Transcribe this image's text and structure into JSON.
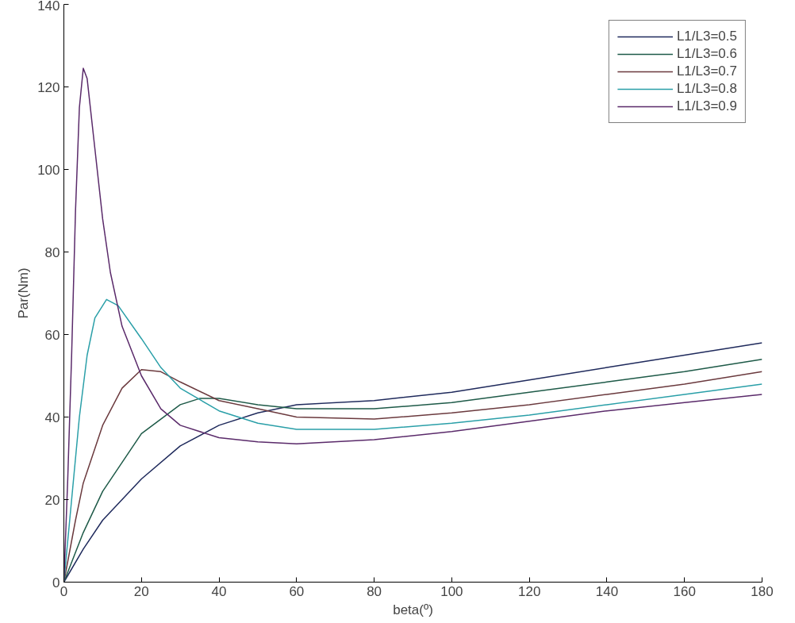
{
  "chart_data": {
    "type": "line",
    "xlabel": "beta(º)",
    "ylabel": "Par(Nm)",
    "xlim": [
      0,
      180
    ],
    "ylim": [
      0,
      140
    ],
    "xticks": [
      0,
      20,
      40,
      60,
      80,
      100,
      120,
      140,
      160,
      180
    ],
    "yticks": [
      0,
      20,
      40,
      60,
      80,
      100,
      120,
      140
    ],
    "grid": false,
    "legend": "top right",
    "marker": "none",
    "line_style": "solid",
    "series": [
      {
        "name": "L1/L3=0.5",
        "color": "#1f2a5c",
        "x": [
          0,
          5,
          10,
          20,
          30,
          40,
          50,
          60,
          80,
          100,
          120,
          140,
          160,
          180
        ],
        "values": [
          0,
          8,
          15,
          25,
          33,
          38,
          41,
          43,
          44,
          46,
          49,
          52,
          55,
          58
        ]
      },
      {
        "name": "L1/L3=0.6",
        "color": "#1e5a48",
        "x": [
          0,
          5,
          10,
          20,
          30,
          35,
          40,
          50,
          60,
          80,
          100,
          120,
          140,
          160,
          180
        ],
        "values": [
          0,
          12,
          22,
          36,
          43,
          44.5,
          44.5,
          43,
          42,
          42,
          43.5,
          46,
          48.5,
          51,
          54
        ]
      },
      {
        "name": "L1/L3=0.7",
        "color": "#6b3a3e",
        "x": [
          0,
          3,
          5,
          10,
          15,
          20,
          25,
          30,
          40,
          50,
          60,
          80,
          100,
          120,
          140,
          160,
          180
        ],
        "values": [
          0,
          15,
          24,
          38,
          47,
          51.5,
          51,
          48.5,
          44,
          42,
          40,
          39.5,
          41,
          43,
          45.5,
          48,
          51
        ]
      },
      {
        "name": "L1/L3=0.8",
        "color": "#2a9fa8",
        "x": [
          0,
          2,
          4,
          6,
          8,
          11,
          14,
          20,
          25,
          30,
          40,
          50,
          60,
          80,
          100,
          120,
          140,
          160,
          180
        ],
        "values": [
          0,
          20,
          40,
          55,
          64,
          68.5,
          67,
          59,
          52,
          47,
          41.5,
          38.5,
          37,
          37,
          38.5,
          40.5,
          43,
          45.5,
          48
        ]
      },
      {
        "name": "L1/L3=0.9",
        "color": "#5a2a6a",
        "x": [
          0,
          1,
          2,
          3,
          4,
          5,
          6,
          8,
          10,
          12,
          15,
          20,
          25,
          30,
          40,
          50,
          60,
          80,
          100,
          120,
          140,
          160,
          180
        ],
        "values": [
          0,
          25,
          55,
          90,
          115,
          124.5,
          122,
          105,
          88,
          75,
          62,
          50,
          42,
          38,
          35,
          34,
          33.5,
          34.5,
          36.5,
          39,
          41.5,
          43.5,
          45.5
        ]
      }
    ]
  }
}
